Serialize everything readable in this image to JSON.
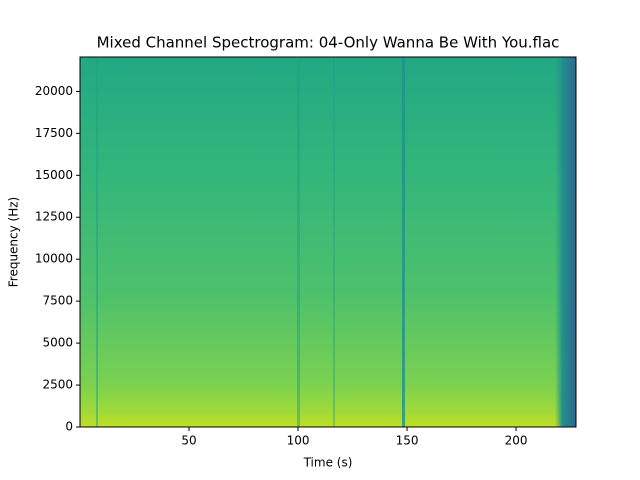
{
  "chart_data": {
    "type": "spectrogram",
    "title": "Mixed Channel Spectrogram: 04-Only Wanna Be With You.flac",
    "x_label": "Time (s)",
    "y_label": "Frequency (Hz)",
    "xlim": [
      0,
      227.5
    ],
    "xticks": [
      50,
      100,
      150,
      200
    ],
    "ylim": [
      0,
      22050
    ],
    "yticks": [
      0,
      2500,
      5000,
      7500,
      10000,
      12500,
      15000,
      17500,
      20000
    ],
    "colormap": "viridis"
  }
}
